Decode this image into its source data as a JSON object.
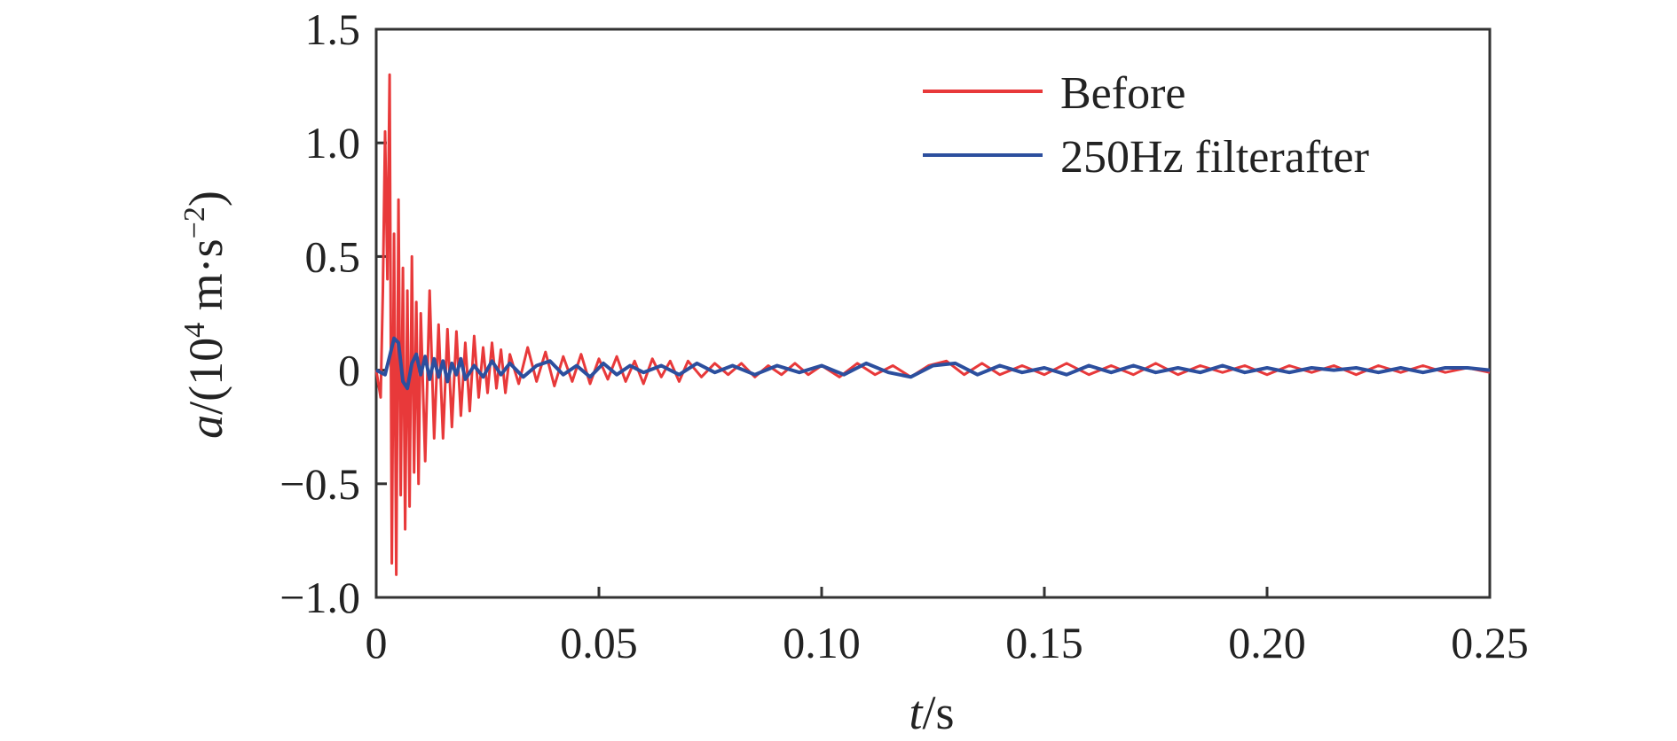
{
  "chart_data": {
    "type": "line",
    "title": "",
    "xlabel": {
      "var": "t",
      "unit": "/s"
    },
    "ylabel": {
      "var": "a",
      "unit_prefix": "/(10",
      "unit_exp": "4",
      "unit_mid": " m·s",
      "unit_exp2": "−2",
      "unit_suffix": ")"
    },
    "xlim": [
      0,
      0.25
    ],
    "ylim": [
      -1.0,
      1.5
    ],
    "x_ticks": [
      0,
      0.05,
      0.1,
      0.15,
      0.2,
      0.25
    ],
    "x_tick_labels": [
      "0",
      "0.05",
      "0.10",
      "0.15",
      "0.20",
      "0.25"
    ],
    "y_ticks": [
      -1.0,
      -0.5,
      0,
      0.5,
      1.0,
      1.5
    ],
    "y_tick_labels": [
      "−1.0",
      "−0.5",
      "0",
      "0.5",
      "1.0",
      "1.5"
    ],
    "grid": false,
    "legend_position": "top-right",
    "series": [
      {
        "name": "Before",
        "color": "#e8393a",
        "x": [
          0,
          0.001,
          0.0015,
          0.002,
          0.0025,
          0.003,
          0.0035,
          0.004,
          0.0045,
          0.005,
          0.0055,
          0.006,
          0.0065,
          0.007,
          0.0075,
          0.008,
          0.0085,
          0.009,
          0.0095,
          0.01,
          0.011,
          0.012,
          0.013,
          0.014,
          0.015,
          0.016,
          0.017,
          0.018,
          0.019,
          0.02,
          0.021,
          0.022,
          0.023,
          0.024,
          0.025,
          0.026,
          0.027,
          0.028,
          0.029,
          0.03,
          0.032,
          0.034,
          0.036,
          0.038,
          0.04,
          0.042,
          0.044,
          0.046,
          0.048,
          0.05,
          0.052,
          0.054,
          0.056,
          0.058,
          0.06,
          0.062,
          0.064,
          0.066,
          0.068,
          0.07,
          0.073,
          0.076,
          0.079,
          0.082,
          0.085,
          0.088,
          0.091,
          0.094,
          0.097,
          0.1,
          0.104,
          0.108,
          0.112,
          0.116,
          0.12,
          0.124,
          0.128,
          0.132,
          0.136,
          0.14,
          0.145,
          0.15,
          0.155,
          0.16,
          0.165,
          0.17,
          0.175,
          0.18,
          0.185,
          0.19,
          0.195,
          0.2,
          0.205,
          0.21,
          0.215,
          0.22,
          0.225,
          0.23,
          0.235,
          0.24,
          0.245,
          0.25
        ],
        "y": [
          0,
          -0.12,
          0.35,
          1.05,
          0.4,
          1.3,
          -0.85,
          0.6,
          -0.9,
          0.75,
          -0.55,
          0.45,
          -0.7,
          0.35,
          -0.6,
          0.5,
          -0.45,
          0.3,
          -0.5,
          0.25,
          -0.4,
          0.35,
          -0.3,
          0.2,
          -0.3,
          0.18,
          -0.25,
          0.17,
          -0.2,
          0.12,
          -0.18,
          0.15,
          -0.12,
          0.1,
          -0.1,
          0.12,
          -0.08,
          0.09,
          -0.1,
          0.07,
          -0.06,
          0.1,
          -0.05,
          0.08,
          -0.07,
          0.06,
          -0.05,
          0.07,
          -0.06,
          0.05,
          -0.04,
          0.06,
          -0.05,
          0.04,
          -0.06,
          0.05,
          -0.03,
          0.04,
          -0.05,
          0.04,
          -0.03,
          0.03,
          -0.02,
          0.03,
          -0.03,
          0.02,
          -0.02,
          0.03,
          -0.02,
          0.02,
          -0.03,
          0.03,
          -0.02,
          0.02,
          -0.03,
          0.02,
          0.04,
          -0.02,
          0.03,
          -0.02,
          0.02,
          -0.02,
          0.03,
          -0.02,
          0.02,
          -0.02,
          0.03,
          -0.02,
          0.02,
          -0.01,
          0.02,
          -0.02,
          0.02,
          -0.01,
          0.02,
          -0.02,
          0.02,
          -0.01,
          0.02,
          -0.01,
          0.01,
          -0.01
        ]
      },
      {
        "name": "250Hz filterafter",
        "color": "#2c4f9e",
        "x": [
          0,
          0.002,
          0.003,
          0.004,
          0.005,
          0.006,
          0.007,
          0.008,
          0.009,
          0.01,
          0.011,
          0.012,
          0.013,
          0.014,
          0.015,
          0.016,
          0.017,
          0.018,
          0.019,
          0.02,
          0.022,
          0.024,
          0.026,
          0.028,
          0.03,
          0.033,
          0.036,
          0.039,
          0.042,
          0.045,
          0.048,
          0.051,
          0.054,
          0.057,
          0.06,
          0.064,
          0.068,
          0.072,
          0.076,
          0.08,
          0.085,
          0.09,
          0.095,
          0.1,
          0.105,
          0.11,
          0.115,
          0.12,
          0.125,
          0.13,
          0.135,
          0.14,
          0.145,
          0.15,
          0.155,
          0.16,
          0.165,
          0.17,
          0.175,
          0.18,
          0.185,
          0.19,
          0.195,
          0.2,
          0.205,
          0.21,
          0.215,
          0.22,
          0.225,
          0.23,
          0.235,
          0.24,
          0.245,
          0.25
        ],
        "y": [
          0,
          -0.02,
          0.06,
          0.14,
          0.12,
          -0.05,
          -0.08,
          0.03,
          0.07,
          -0.02,
          0.06,
          -0.04,
          0.05,
          -0.03,
          0.04,
          -0.05,
          0.03,
          -0.02,
          0.05,
          -0.04,
          0.02,
          -0.03,
          0.04,
          -0.02,
          0.03,
          -0.03,
          0.02,
          0.04,
          -0.02,
          0.02,
          -0.03,
          0.03,
          -0.02,
          0.02,
          -0.01,
          0.02,
          -0.02,
          0.03,
          -0.01,
          0.02,
          -0.02,
          0.02,
          -0.01,
          0.02,
          -0.02,
          0.03,
          -0.01,
          -0.03,
          0.02,
          0.03,
          -0.02,
          0.02,
          -0.01,
          0.01,
          -0.02,
          0.02,
          -0.01,
          0.02,
          -0.01,
          0.01,
          -0.01,
          0.02,
          -0.01,
          0.01,
          -0.01,
          0.01,
          0.0,
          0.01,
          -0.01,
          0.01,
          -0.01,
          0.01,
          0.01,
          0.0
        ]
      }
    ]
  }
}
